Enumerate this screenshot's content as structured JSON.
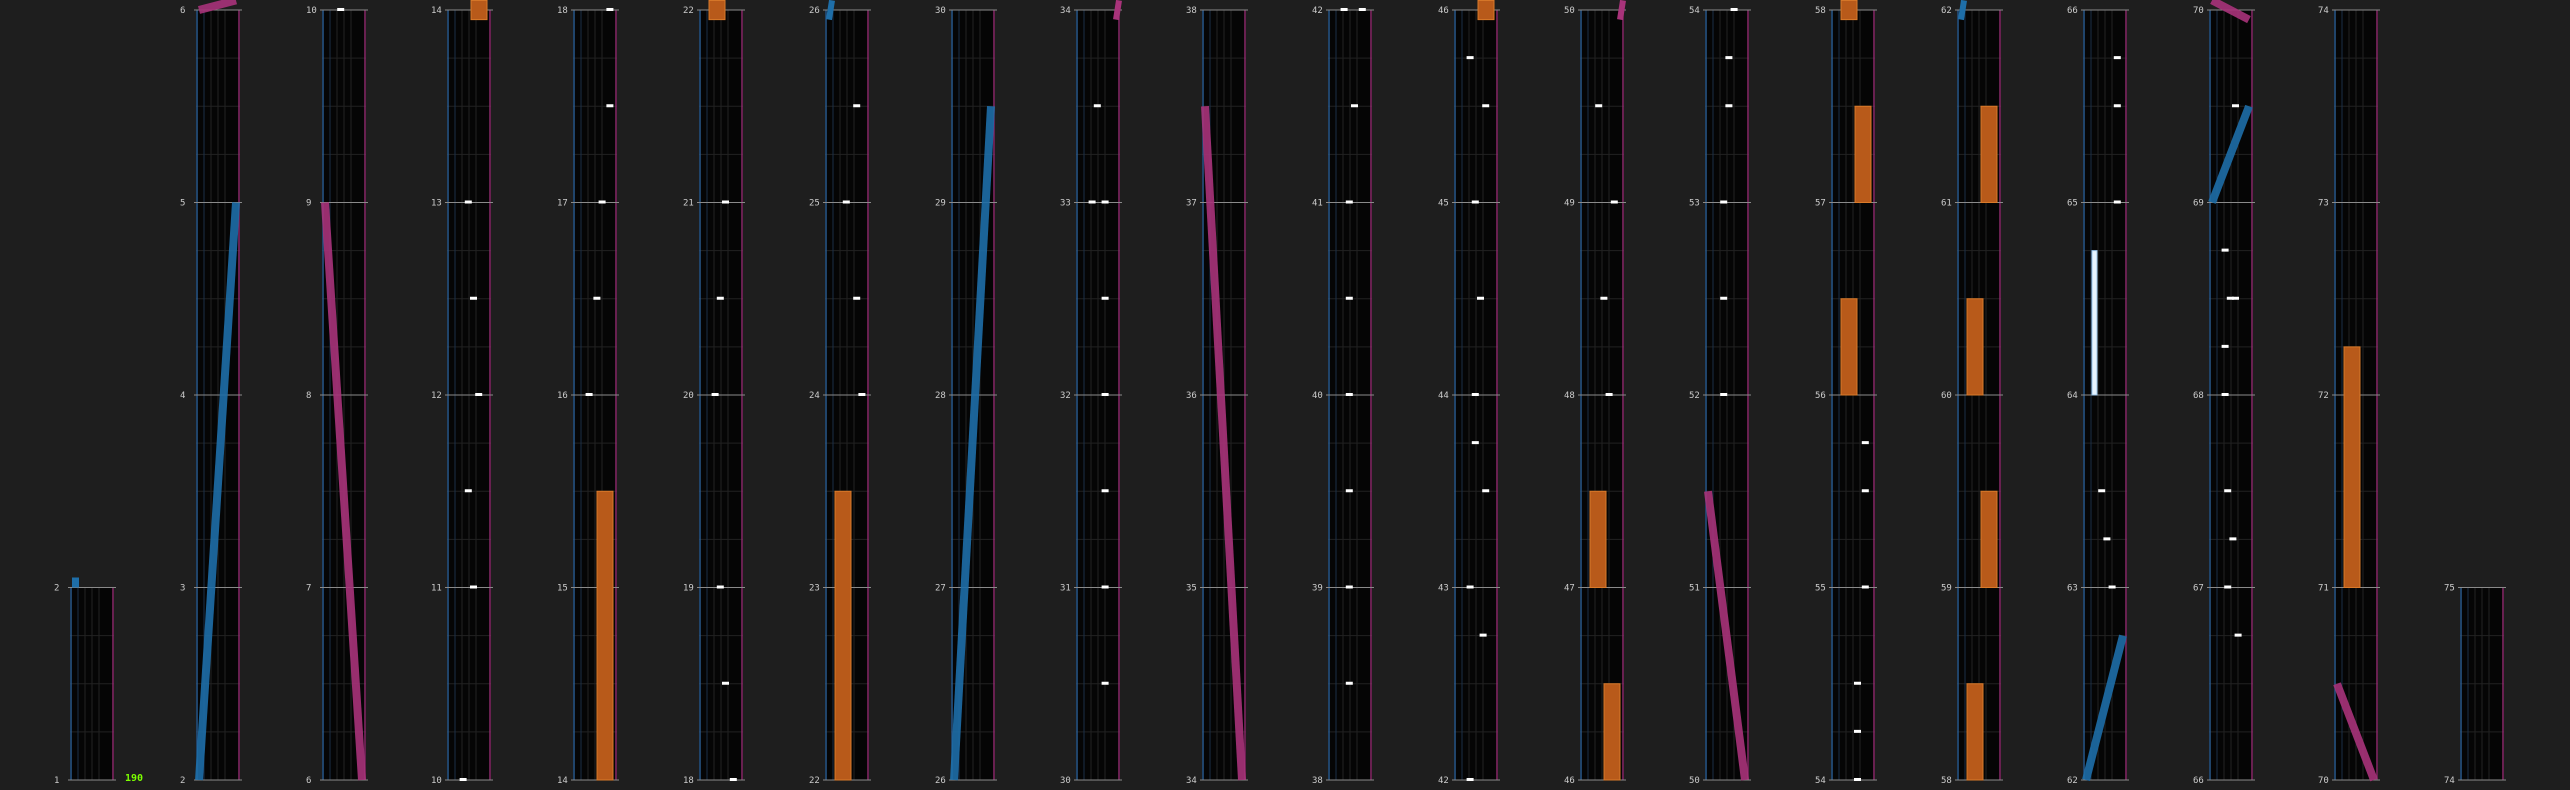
{
  "bpm_label": "190",
  "colors": {
    "background": "#1e1e1e",
    "lane_bg": "#050505",
    "grid": "#222222",
    "measure_line": "#8a8a8a",
    "left_border": "#2a5a8c",
    "right_border": "#8a2a6a",
    "scratch_blue": "#1e6ea8",
    "scratch_pink": "#a8337a",
    "hold_orange": "#b85a1a",
    "hold_orange_edge": "#d97a2a",
    "note_white": "#ffffff",
    "bpm_green": "#7cff00",
    "label_text": "#cccccc"
  },
  "chart": {
    "measure_count_visible": 75,
    "columns": [
      {
        "measures": [
          "1",
          "2"
        ]
      },
      {
        "measures": [
          "2",
          "3",
          "4",
          "5",
          "6"
        ]
      },
      {
        "measures": [
          "6",
          "7",
          "8",
          "9",
          "10"
        ]
      },
      {
        "measures": [
          "10",
          "11",
          "12",
          "13",
          "14"
        ]
      },
      {
        "measures": [
          "14",
          "15",
          "16",
          "17",
          "18"
        ]
      },
      {
        "measures": [
          "18",
          "19",
          "20",
          "21",
          "22"
        ]
      },
      {
        "measures": [
          "22",
          "23",
          "24",
          "25",
          "26"
        ]
      },
      {
        "measures": [
          "26",
          "27",
          "28",
          "29",
          "30"
        ]
      },
      {
        "measures": [
          "30",
          "31",
          "32",
          "33",
          "34"
        ]
      },
      {
        "measures": [
          "34",
          "35",
          "36",
          "37",
          "38"
        ]
      },
      {
        "measures": [
          "38",
          "39",
          "40",
          "41",
          "42"
        ]
      },
      {
        "measures": [
          "42",
          "43",
          "44",
          "45",
          "46"
        ]
      },
      {
        "measures": [
          "46",
          "47",
          "48",
          "49",
          "50"
        ]
      },
      {
        "measures": [
          "50",
          "51",
          "52",
          "53",
          "54"
        ]
      },
      {
        "measures": [
          "54",
          "55",
          "56",
          "57",
          "58"
        ]
      },
      {
        "measures": [
          "58",
          "59",
          "60",
          "61",
          "62"
        ]
      },
      {
        "measures": [
          "62",
          "63",
          "64",
          "65",
          "66"
        ]
      },
      {
        "measures": [
          "66",
          "67",
          "68",
          "69",
          "70"
        ]
      },
      {
        "measures": [
          "70",
          "71",
          "72",
          "73",
          "74"
        ]
      },
      {
        "measures": [
          "74",
          "75"
        ]
      }
    ]
  }
}
